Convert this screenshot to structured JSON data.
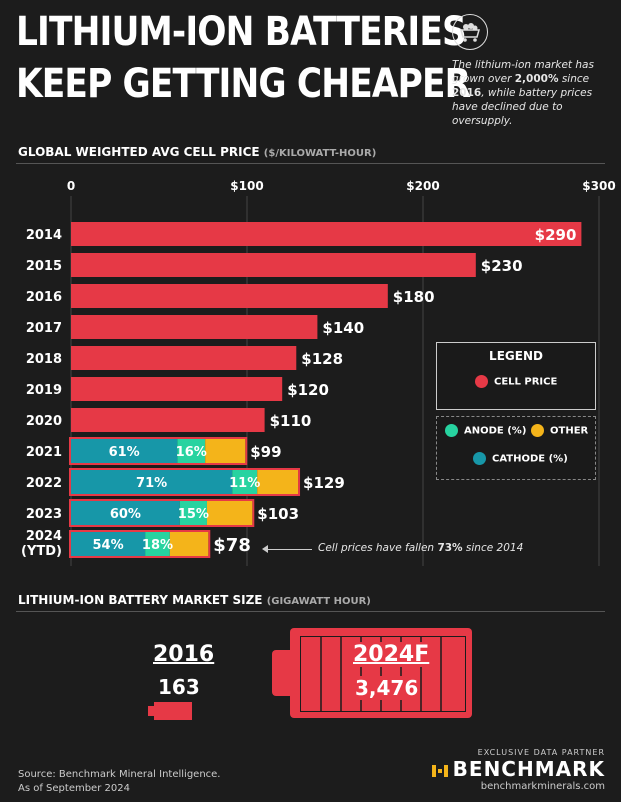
{
  "header": {
    "title_line1": "LITHIUM-ION BATTERIES",
    "title_line2": "KEEP GETTING CHEAPER",
    "blurb_pre": "The lithium-ion market has grown over ",
    "blurb_pct": "2,000%",
    "blurb_mid": " since ",
    "blurb_year": "2016",
    "blurb_post": ", while battery prices have declined due to oversupply."
  },
  "section1": {
    "title": "GLOBAL WEIGHTED AVG CELL PRICE",
    "unit": "($/KILOWATT-HOUR)"
  },
  "chart_data": {
    "type": "bar",
    "orientation": "horizontal",
    "title": "GLOBAL WEIGHTED AVG CELL PRICE ($/KILOWATT-HOUR)",
    "xlim": [
      0,
      300
    ],
    "x_ticks": [
      "0",
      "$100",
      "$200",
      "$300"
    ],
    "x_tick_values": [
      0,
      100,
      200,
      300
    ],
    "categories": [
      "2014",
      "2015",
      "2016",
      "2017",
      "2018",
      "2019",
      "2020",
      "2021",
      "2022",
      "2023",
      "2024"
    ],
    "category_sublabels": [
      "",
      "",
      "",
      "",
      "",
      "",
      "",
      "",
      "",
      "",
      "(YTD)"
    ],
    "values": [
      290,
      230,
      180,
      140,
      128,
      120,
      110,
      99,
      129,
      103,
      78
    ],
    "value_labels": [
      "$290",
      "$230",
      "$180",
      "$140",
      "$128",
      "$120",
      "$110",
      "$99",
      "$129",
      "$103",
      "$78"
    ],
    "breakdown": [
      null,
      null,
      null,
      null,
      null,
      null,
      null,
      {
        "cathode": 61,
        "anode": 16,
        "other": 23
      },
      {
        "cathode": 71,
        "anode": 11,
        "other": 18
      },
      {
        "cathode": 60,
        "anode": 15,
        "other": 25
      },
      {
        "cathode": 54,
        "anode": 18,
        "other": 28
      }
    ],
    "breakdown_labels": [
      null,
      null,
      null,
      null,
      null,
      null,
      null,
      {
        "cathode": "61%",
        "anode": "16%"
      },
      {
        "cathode": "71%",
        "anode": "11%"
      },
      {
        "cathode": "60%",
        "anode": "15%"
      },
      {
        "cathode": "54%",
        "anode": "18%"
      }
    ],
    "colors": {
      "cell_price": "#e63946",
      "cathode": "#1797a8",
      "anode": "#27d3a0",
      "other": "#f4b41a"
    },
    "grid": true
  },
  "legend": {
    "title": "LEGEND",
    "cell_price": "CELL PRICE",
    "anode": "ANODE (%)",
    "other": "OTHER",
    "cathode": "CATHODE (%)"
  },
  "annotation": {
    "pre": "Cell prices have fallen ",
    "pct": "73%",
    "post": " since 2014"
  },
  "section2": {
    "title": "LITHIUM-ION BATTERY MARKET SIZE",
    "unit": "(GIGAWATT HOUR)"
  },
  "market_size": {
    "year1": "2016",
    "value1": "163",
    "year2": "2024F",
    "value2": "3,476"
  },
  "footer": {
    "source_line1": "Source: Benchmark Mineral Intelligence.",
    "source_line2": "As of September 2024",
    "partner_label": "EXCLUSIVE DATA PARTNER",
    "partner_name": "BENCHMARK",
    "partner_url": "benchmarkminerals.com"
  }
}
